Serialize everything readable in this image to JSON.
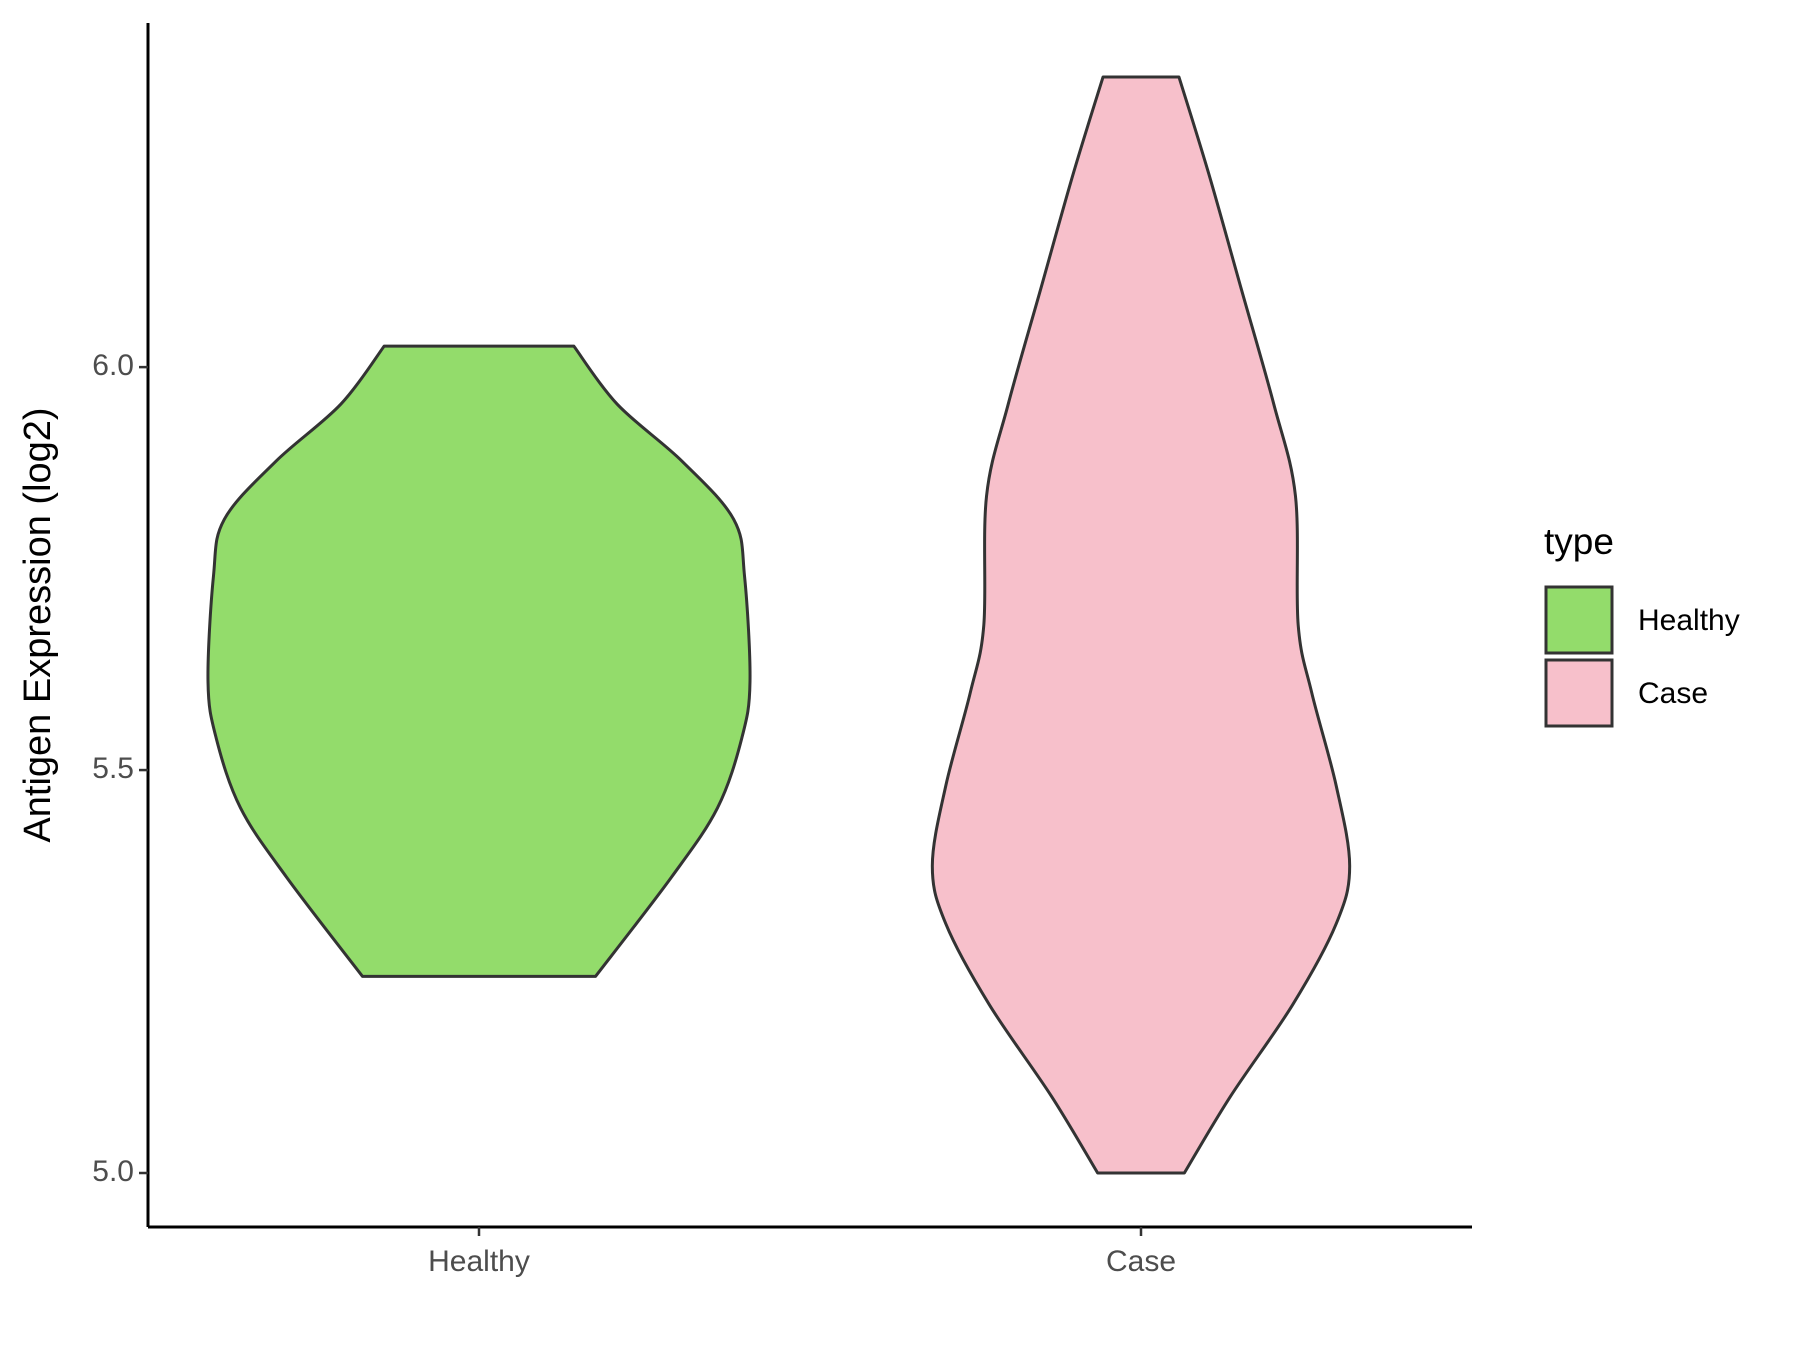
{
  "chart_data": {
    "type": "violin",
    "y_label": "Antigen Expression (log2)",
    "categories": [
      "Healthy",
      "Case"
    ],
    "legend_title": "type",
    "legend": "right",
    "ylim": [
      4.933,
      6.427
    ],
    "yticks": [
      {
        "value": 5,
        "label": "5.0"
      },
      5.5,
      {
        "value": 6,
        "label": "6.0"
      }
    ],
    "series": [
      {
        "name": "Healthy",
        "color": "#93dc6b",
        "y": [
          6.026,
          5.954,
          5.883,
          5.811,
          5.74,
          5.61,
          5.54,
          5.453,
          5.367,
          5.244
        ],
        "density": [
          0.35,
          0.51,
          0.75,
          0.94,
          0.98,
          1.0,
          0.97,
          0.88,
          0.71,
          0.43
        ]
      },
      {
        "name": "Case",
        "color": "#f7c0cb",
        "y": [
          6.36,
          6.24,
          6.097,
          5.954,
          5.84,
          5.68,
          5.596,
          5.481,
          5.381,
          5.309,
          5.209,
          5.095,
          5.0
        ],
        "density": [
          0.14,
          0.25,
          0.37,
          0.49,
          0.57,
          0.58,
          0.63,
          0.72,
          0.77,
          0.72,
          0.56,
          0.33,
          0.16
        ]
      }
    ]
  }
}
